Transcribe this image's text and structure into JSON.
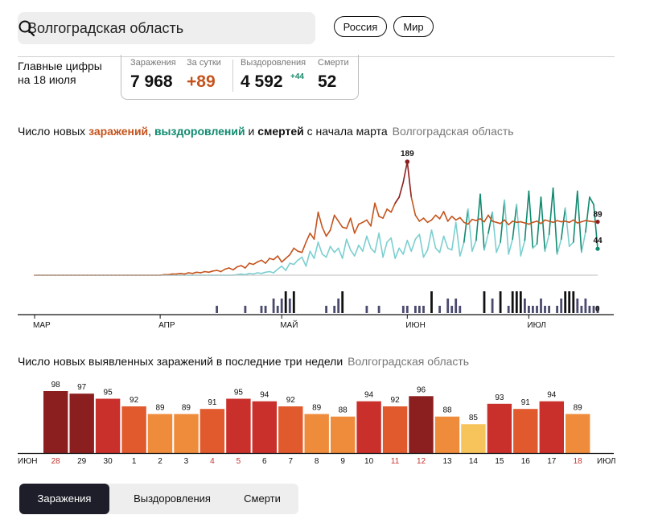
{
  "search": {
    "value": "Волгоградская область"
  },
  "header_buttons": {
    "russia": "Россия",
    "world": "Мир"
  },
  "headline": {
    "line1": "Главные цифры",
    "line2": "на 18 июля"
  },
  "stats": {
    "infections_label": "Заражения",
    "infections_value": "7 968",
    "per_day_label": "За сутки",
    "per_day_value": "+89",
    "recoveries_label": "Выздоровления",
    "recoveries_value": "4 592",
    "recoveries_delta": "+44",
    "deaths_label": "Смерти",
    "deaths_value": "52"
  },
  "colors": {
    "infections": "#c4541d",
    "infections_peak": "#8b1e1e",
    "recoveries": "#0f8a6f",
    "recoveries_light": "#7ccfd0",
    "deaths": "#111111",
    "deaths_light": "#4a4a6e"
  },
  "chart_data": [
    {
      "type": "line",
      "title": {
        "part1": "Число новых ",
        "infections": "заражений",
        "sep": ", ",
        "recoveries": "выздоровлений",
        "and": " и ",
        "deaths": "смертей",
        "rest": " с начала марта",
        "region": "Волгоградская область"
      },
      "x_start": "1 мар",
      "x_end": "18 июл",
      "ylim": [
        0,
        189
      ],
      "month_ticks": [
        {
          "label": "МАР",
          "day": 0
        },
        {
          "label": "АПР",
          "day": 31
        },
        {
          "label": "МАЙ",
          "day": 61
        },
        {
          "label": "ИЮН",
          "day": 92
        },
        {
          "label": "ИЮЛ",
          "day": 122
        }
      ],
      "series": [
        {
          "key": "infections",
          "values": [
            0,
            0,
            0,
            0,
            0,
            0,
            0,
            0,
            0,
            0,
            0,
            0,
            0,
            0,
            0,
            0,
            0,
            0,
            0,
            0,
            0,
            0,
            0,
            0,
            0,
            0,
            0,
            0,
            0,
            0,
            0,
            0,
            1,
            1,
            2,
            2,
            3,
            2,
            4,
            3,
            5,
            4,
            6,
            5,
            7,
            8,
            6,
            10,
            12,
            9,
            14,
            16,
            12,
            20,
            18,
            22,
            25,
            20,
            28,
            26,
            32,
            22,
            28,
            34,
            45,
            40,
            38,
            55,
            70,
            60,
            105,
            80,
            65,
            75,
            100,
            90,
            80,
            78,
            95,
            70,
            85,
            88,
            92,
            82,
            120,
            98,
            95,
            110,
            105,
            120,
            130,
            155,
            189,
            130,
            100,
            90,
            95,
            88,
            92,
            100,
            94,
            106,
            90,
            98,
            92,
            96,
            88,
            85,
            93,
            91,
            94,
            89,
            100,
            90,
            88,
            86,
            92,
            84,
            90,
            88,
            89,
            87,
            85,
            88,
            90,
            86,
            92,
            90,
            88,
            91,
            89,
            90,
            88,
            92,
            87,
            89,
            91,
            90,
            89,
            89
          ]
        },
        {
          "key": "recoveries",
          "values": [
            0,
            0,
            0,
            0,
            0,
            0,
            0,
            0,
            0,
            0,
            0,
            0,
            0,
            0,
            0,
            0,
            0,
            0,
            0,
            0,
            0,
            0,
            0,
            0,
            0,
            0,
            0,
            0,
            0,
            0,
            0,
            0,
            0,
            0,
            0,
            0,
            0,
            0,
            0,
            0,
            0,
            0,
            0,
            0,
            0,
            0,
            0,
            0,
            0,
            0,
            1,
            2,
            1,
            3,
            2,
            4,
            3,
            5,
            6,
            4,
            10,
            15,
            8,
            20,
            18,
            25,
            30,
            15,
            40,
            28,
            55,
            35,
            30,
            48,
            38,
            45,
            28,
            60,
            42,
            32,
            50,
            40,
            65,
            45,
            38,
            70,
            30,
            55,
            62,
            28,
            45,
            35,
            58,
            40,
            60,
            68,
            30,
            42,
            75,
            45,
            38,
            65,
            45,
            42,
            88,
            32,
            55,
            110,
            40,
            58,
            135,
            42,
            70,
            105,
            38,
            55,
            125,
            35,
            60,
            118,
            32,
            58,
            140,
            45,
            52,
            130,
            40,
            68,
            145,
            35,
            60,
            112,
            48,
            55,
            140,
            38,
            72,
            130,
            118,
            44
          ]
        }
      ],
      "deaths": {
        "values": [
          0,
          0,
          0,
          0,
          0,
          0,
          0,
          0,
          0,
          0,
          0,
          0,
          0,
          0,
          0,
          0,
          0,
          0,
          0,
          0,
          0,
          0,
          0,
          0,
          0,
          0,
          0,
          0,
          0,
          0,
          0,
          0,
          0,
          0,
          0,
          0,
          0,
          0,
          0,
          0,
          0,
          0,
          0,
          0,
          0,
          0,
          0,
          0,
          0,
          0,
          0,
          0,
          0,
          0,
          0,
          0,
          0,
          0,
          0,
          0,
          0,
          0,
          0,
          0,
          0,
          0,
          0,
          0,
          0,
          0,
          0,
          0,
          0,
          0,
          0,
          0,
          0,
          0,
          0,
          0,
          0,
          0,
          0,
          0,
          0,
          0,
          0,
          0,
          0,
          0,
          0,
          0,
          0,
          0,
          0,
          0,
          0,
          0,
          0,
          0,
          0,
          0,
          0,
          0,
          0,
          0,
          0,
          0,
          0,
          0,
          0,
          0,
          0,
          0,
          0,
          0,
          0,
          0,
          0,
          0,
          0,
          0,
          0,
          0,
          0,
          0,
          0,
          0,
          0,
          0,
          0,
          0,
          0,
          0,
          0,
          0,
          0,
          0,
          0,
          0
        ],
        "bars": [
          {
            "day": 45,
            "value": 1
          },
          {
            "day": 52,
            "value": 1
          },
          {
            "day": 56,
            "value": 1
          },
          {
            "day": 57,
            "value": 1
          },
          {
            "day": 59,
            "value": 2
          },
          {
            "day": 60,
            "value": 1
          },
          {
            "day": 61,
            "value": 2
          },
          {
            "day": 62,
            "value": 3
          },
          {
            "day": 63,
            "value": 2
          },
          {
            "day": 64,
            "value": 3
          },
          {
            "day": 72,
            "value": 1
          },
          {
            "day": 74,
            "value": 1
          },
          {
            "day": 75,
            "value": 2
          },
          {
            "day": 76,
            "value": 3
          },
          {
            "day": 82,
            "value": 1
          },
          {
            "day": 85,
            "value": 1
          },
          {
            "day": 91,
            "value": 1
          },
          {
            "day": 92,
            "value": 1
          },
          {
            "day": 94,
            "value": 1
          },
          {
            "day": 95,
            "value": 1
          },
          {
            "day": 96,
            "value": 1
          },
          {
            "day": 98,
            "value": 3
          },
          {
            "day": 100,
            "value": 1
          },
          {
            "day": 102,
            "value": 2
          },
          {
            "day": 103,
            "value": 1
          },
          {
            "day": 104,
            "value": 2
          },
          {
            "day": 105,
            "value": 1
          },
          {
            "day": 111,
            "value": 3
          },
          {
            "day": 113,
            "value": 2
          },
          {
            "day": 115,
            "value": 3
          },
          {
            "day": 117,
            "value": 1
          },
          {
            "day": 118,
            "value": 3
          },
          {
            "day": 119,
            "value": 3
          },
          {
            "day": 120,
            "value": 3
          },
          {
            "day": 121,
            "value": 2
          },
          {
            "day": 122,
            "value": 1
          },
          {
            "day": 123,
            "value": 1
          },
          {
            "day": 124,
            "value": 1
          },
          {
            "day": 125,
            "value": 2
          },
          {
            "day": 126,
            "value": 1
          },
          {
            "day": 127,
            "value": 1
          },
          {
            "day": 129,
            "value": 1
          },
          {
            "day": 130,
            "value": 2
          },
          {
            "day": 131,
            "value": 3
          },
          {
            "day": 132,
            "value": 3
          },
          {
            "day": 133,
            "value": 3
          },
          {
            "day": 134,
            "value": 2
          },
          {
            "day": 135,
            "value": 1
          },
          {
            "day": 136,
            "value": 2
          },
          {
            "day": 137,
            "value": 1
          },
          {
            "day": 138,
            "value": 1
          },
          {
            "day": 139,
            "value": 1
          }
        ],
        "last_label": "0"
      },
      "annotations": {
        "peak": "189",
        "last_infections": "89",
        "last_recoveries": "44"
      }
    },
    {
      "type": "bar",
      "title": {
        "text": "Число новых выявленных заражений в последние три недели",
        "region": "Волгоградская область"
      },
      "month_start": "ИЮН",
      "month_end": "ИЮЛ",
      "categories": [
        "28",
        "29",
        "30",
        "1",
        "2",
        "3",
        "4",
        "5",
        "6",
        "7",
        "8",
        "9",
        "10",
        "11",
        "12",
        "13",
        "14",
        "15",
        "16",
        "17",
        "18"
      ],
      "values": [
        98,
        97,
        95,
        92,
        89,
        89,
        91,
        95,
        94,
        92,
        89,
        88,
        94,
        92,
        96,
        88,
        85,
        93,
        91,
        94,
        89
      ],
      "weekend": [
        true,
        false,
        false,
        false,
        false,
        false,
        true,
        true,
        false,
        false,
        false,
        false,
        false,
        true,
        true,
        false,
        false,
        false,
        false,
        false,
        true
      ]
    }
  ],
  "tabs": {
    "infections": "Заражения",
    "recoveries": "Выздоровления",
    "deaths": "Смерти"
  }
}
